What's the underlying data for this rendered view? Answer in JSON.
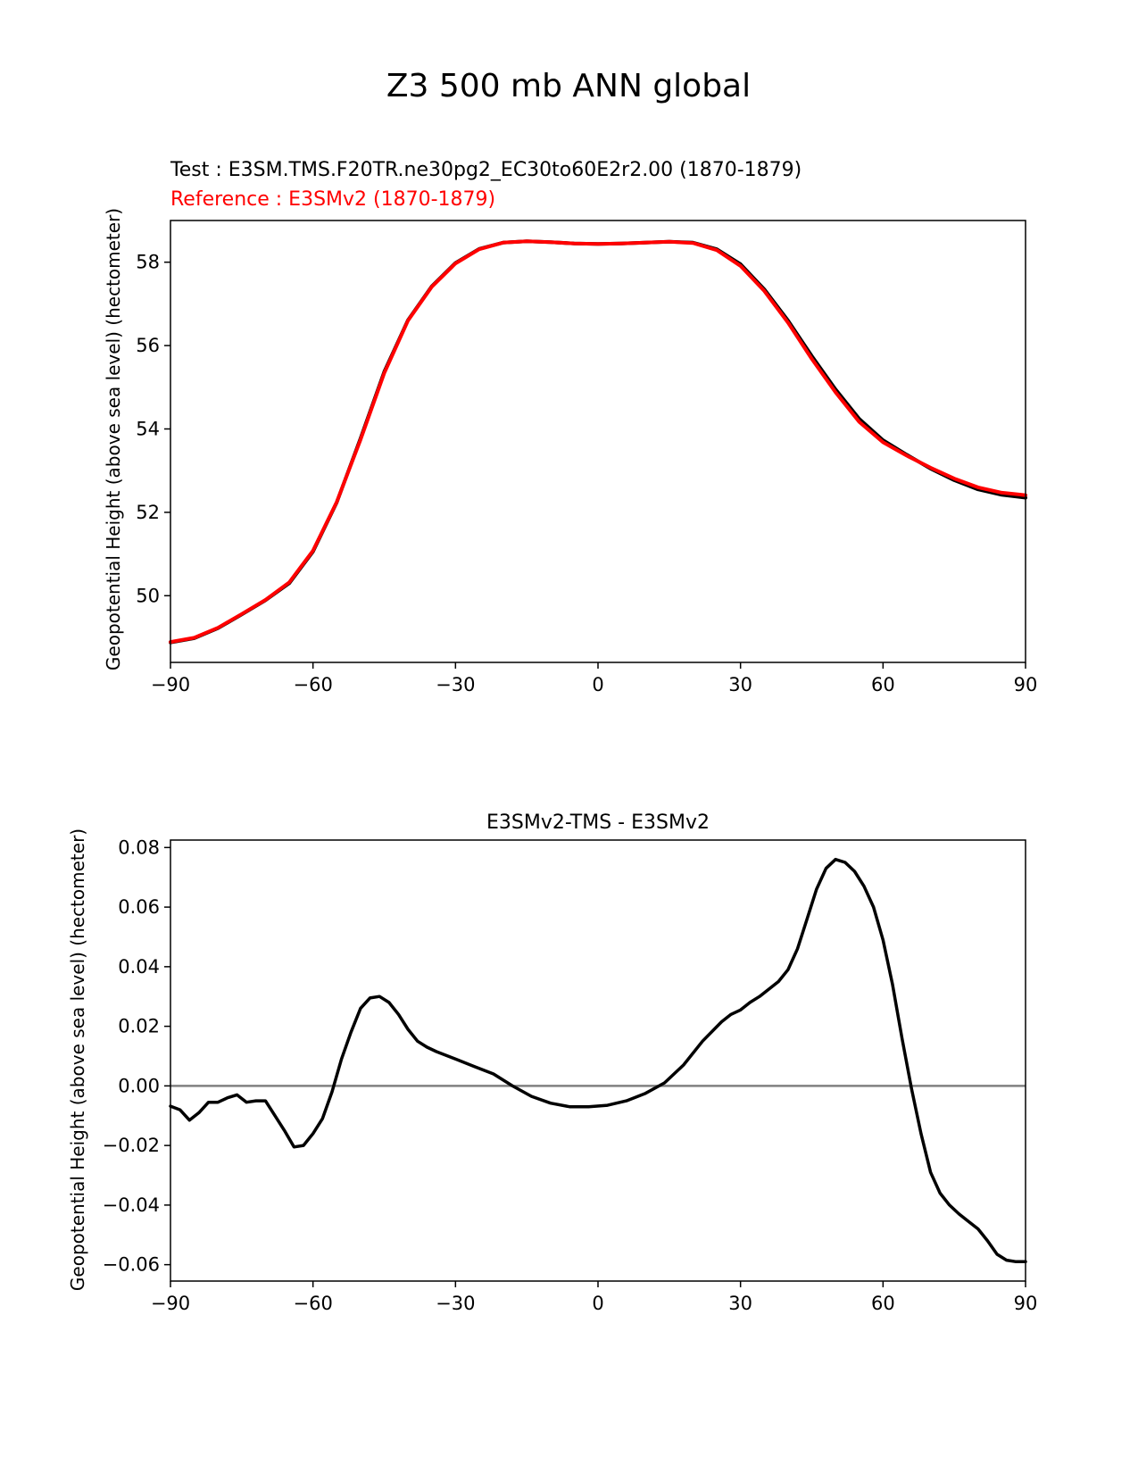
{
  "figure_title": "Z3 500 mb ANN global",
  "chart_data": [
    {
      "type": "line",
      "title_test": "Test : E3SM.TMS.F20TR.ne30pg2_EC30to60E2r2.00 (1870-1879)",
      "title_reference": "Reference : E3SMv2 (1870-1879)",
      "xlabel": "",
      "ylabel": "Geopotential Height (above sea level) (hectometer)",
      "xlim": [
        -90,
        90
      ],
      "ylim": [
        48.4,
        59.0
      ],
      "xticks": [
        -90,
        -60,
        -30,
        0,
        30,
        60,
        90
      ],
      "xtick_labels": [
        "−90",
        "−60",
        "−30",
        "0",
        "30",
        "60",
        "90"
      ],
      "yticks": [
        50,
        52,
        54,
        56,
        58
      ],
      "ytick_labels": [
        "50",
        "52",
        "54",
        "56",
        "58"
      ],
      "colors": {
        "test": "#000000",
        "reference": "#ff0000"
      },
      "x": [
        -90,
        -85,
        -80,
        -75,
        -70,
        -65,
        -60,
        -55,
        -50,
        -45,
        -40,
        -35,
        -30,
        -25,
        -20,
        -15,
        -10,
        -5,
        0,
        5,
        10,
        15,
        20,
        25,
        30,
        35,
        40,
        45,
        50,
        55,
        60,
        65,
        70,
        75,
        80,
        85,
        90
      ],
      "series": [
        {
          "name": "Test",
          "color": "#000000",
          "values": [
            48.88,
            48.98,
            49.22,
            49.55,
            49.89,
            50.3,
            51.06,
            52.24,
            53.77,
            55.37,
            56.61,
            57.42,
            57.98,
            58.32,
            58.47,
            58.5,
            58.48,
            58.45,
            58.44,
            58.45,
            58.47,
            58.49,
            58.47,
            58.31,
            57.95,
            57.35,
            56.6,
            55.75,
            54.95,
            54.24,
            53.73,
            53.38,
            53.05,
            52.77,
            52.55,
            52.42,
            52.35
          ]
        },
        {
          "name": "Reference",
          "color": "#ff0000",
          "values": [
            48.89,
            48.99,
            49.23,
            49.56,
            49.9,
            50.32,
            51.08,
            52.25,
            53.74,
            55.34,
            56.6,
            57.41,
            57.97,
            58.31,
            58.47,
            58.5,
            58.48,
            58.45,
            58.44,
            58.45,
            58.47,
            58.49,
            58.46,
            58.29,
            57.91,
            57.31,
            56.55,
            55.68,
            54.88,
            54.17,
            53.68,
            53.36,
            53.07,
            52.81,
            52.6,
            52.47,
            52.41
          ]
        }
      ]
    },
    {
      "type": "line",
      "title": "E3SMv2-TMS - E3SMv2",
      "xlabel": "",
      "ylabel": "Geopotential Height (above sea level) (hectometer)",
      "xlim": [
        -90,
        90
      ],
      "ylim": [
        -0.0655,
        0.0825
      ],
      "xticks": [
        -90,
        -60,
        -30,
        0,
        30,
        60,
        90
      ],
      "xtick_labels": [
        "−90",
        "−60",
        "−30",
        "0",
        "30",
        "60",
        "90"
      ],
      "yticks": [
        -0.06,
        -0.04,
        -0.02,
        0.0,
        0.02,
        0.04,
        0.06,
        0.08
      ],
      "ytick_labels": [
        "−0.06",
        "−0.04",
        "−0.02",
        "0.00",
        "0.02",
        "0.04",
        "0.06",
        "0.08"
      ],
      "zero_line_color": "#808080",
      "x": [
        -90,
        -88,
        -86,
        -84,
        -82,
        -80,
        -78,
        -76,
        -74,
        -72,
        -70,
        -68,
        -66,
        -64,
        -62,
        -60,
        -58,
        -56,
        -54,
        -52,
        -50,
        -48,
        -46,
        -44,
        -42,
        -40,
        -38,
        -36,
        -34,
        -30,
        -26,
        -22,
        -18,
        -14,
        -10,
        -6,
        -2,
        2,
        6,
        10,
        14,
        18,
        22,
        26,
        28,
        30,
        32,
        34,
        36,
        38,
        40,
        42,
        44,
        46,
        48,
        50,
        52,
        54,
        56,
        58,
        60,
        62,
        64,
        66,
        68,
        70,
        72,
        74,
        76,
        78,
        80,
        82,
        84,
        86,
        88,
        90
      ],
      "series": [
        {
          "name": "E3SMv2-TMS - E3SMv2",
          "color": "#000000",
          "values": [
            -0.0068,
            -0.008,
            -0.0115,
            -0.009,
            -0.0055,
            -0.0055,
            -0.004,
            -0.003,
            -0.0055,
            -0.005,
            -0.005,
            -0.01,
            -0.015,
            -0.0205,
            -0.02,
            -0.016,
            -0.011,
            -0.002,
            0.009,
            0.018,
            0.026,
            0.0295,
            0.03,
            0.028,
            0.024,
            0.019,
            0.015,
            0.013,
            0.0115,
            0.009,
            0.0065,
            0.004,
            0.0,
            -0.0035,
            -0.0058,
            -0.007,
            -0.007,
            -0.0065,
            -0.005,
            -0.0025,
            0.001,
            0.007,
            0.015,
            0.0215,
            0.024,
            0.0255,
            0.028,
            0.03,
            0.0325,
            0.035,
            0.039,
            0.046,
            0.056,
            0.066,
            0.073,
            0.076,
            0.075,
            0.072,
            0.067,
            0.06,
            0.049,
            0.034,
            0.016,
            -0.001,
            -0.016,
            -0.029,
            -0.036,
            -0.04,
            -0.043,
            -0.0455,
            -0.048,
            -0.052,
            -0.0565,
            -0.0585,
            -0.059,
            -0.059
          ]
        }
      ]
    }
  ]
}
